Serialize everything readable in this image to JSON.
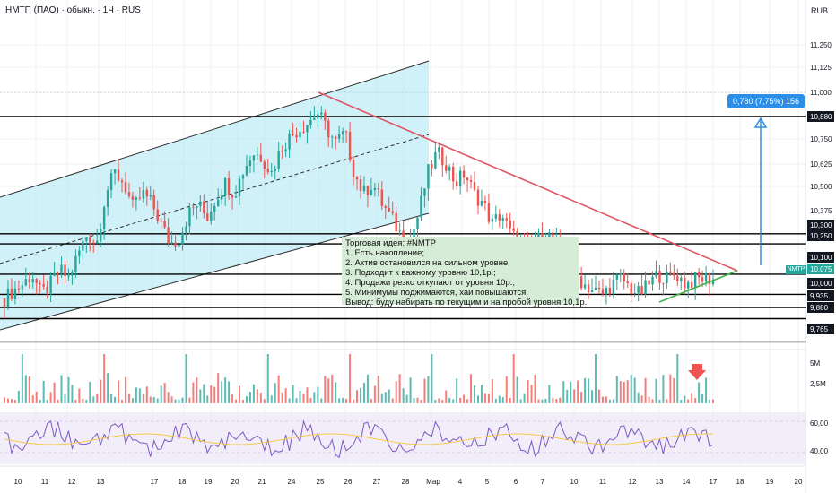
{
  "header": {
    "title": "НМТП (ПАО) · обыкн. · 1Ч · RUS",
    "currency": "RUB",
    "symbol": "NMTP"
  },
  "colors": {
    "channel_fill": "#a9e6f2",
    "channel_line": "#2c2c2c",
    "resistance": "#e05565",
    "support": "#3fb04b",
    "level": "#000000",
    "measure": "#2d8ee8",
    "up": "#26a69a",
    "down": "#ef5350",
    "rsi": "#7e57c2",
    "rsi_ma": "#f2c94c",
    "note_bg": "#d7ecd6"
  },
  "note": {
    "lines": [
      "Торговая идея: #NMTP",
      "1. Есть накопление;",
      "2. Актив остановился на сильном уровне;",
      "3. Подходит к важному уровню 10,1р.;",
      "4. Продажи резко откупают от уровня 10р.;",
      "5. Минимумы поджимаются, хаи повышаются.",
      "Вывод: буду набирать по текущим и на пробой уровня 10,1р."
    ]
  },
  "measure_label": "0,780 (7,75%) 156",
  "chart_data": {
    "type": "candlestick",
    "price_axis": {
      "ticks": [
        "11,250",
        "11,125",
        "11,000",
        "10,750",
        "10,625",
        "10,500",
        "10,375"
      ],
      "level_labels": [
        "10,880",
        "10,300",
        "10,250",
        "10,100",
        "10,075",
        "10,000",
        "9,935",
        "9,880",
        "9,765"
      ],
      "current": "10,075"
    },
    "horizontal_levels": [
      10.88,
      10.3,
      10.25,
      10.1,
      10.0,
      9.935,
      9.88,
      9.765
    ],
    "x_axis_labels": [
      "10",
      "11",
      "12",
      "13",
      "17",
      "18",
      "19",
      "20",
      "21",
      "24",
      "25",
      "26",
      "27",
      "28",
      "Мар",
      "4",
      "5",
      "6",
      "7",
      "10",
      "11",
      "12",
      "13",
      "14",
      "17",
      "18",
      "19",
      "20"
    ],
    "volume_axis": [
      "5M",
      "2,5M"
    ],
    "rsi_axis": [
      "60,00",
      "40,00"
    ],
    "series_close": [
      9.98,
      10.02,
      10.05,
      10.1,
      10.0,
      10.05,
      10.12,
      10.08,
      10.2,
      10.3,
      10.25,
      10.5,
      10.6,
      10.55,
      10.42,
      10.5,
      10.45,
      10.35,
      10.25,
      10.28,
      10.4,
      10.45,
      10.38,
      10.48,
      10.55,
      10.5,
      10.62,
      10.7,
      10.68,
      10.6,
      10.72,
      10.78,
      10.82,
      10.85,
      10.9,
      10.82,
      10.75,
      10.8,
      10.6,
      10.5,
      10.55,
      10.45,
      10.38,
      10.3,
      10.25,
      10.4,
      10.6,
      10.7,
      10.65,
      10.55,
      10.6,
      10.5,
      10.45,
      10.35,
      10.4,
      10.3,
      10.25,
      10.22,
      10.27,
      10.3,
      10.25,
      10.2,
      10.1,
      10.05,
      10.02,
      10.0,
      10.05,
      10.08,
      10.03,
      10.0,
      10.05,
      10.1,
      10.08,
      10.1,
      10.05,
      10.07,
      10.08,
      10.075
    ]
  }
}
